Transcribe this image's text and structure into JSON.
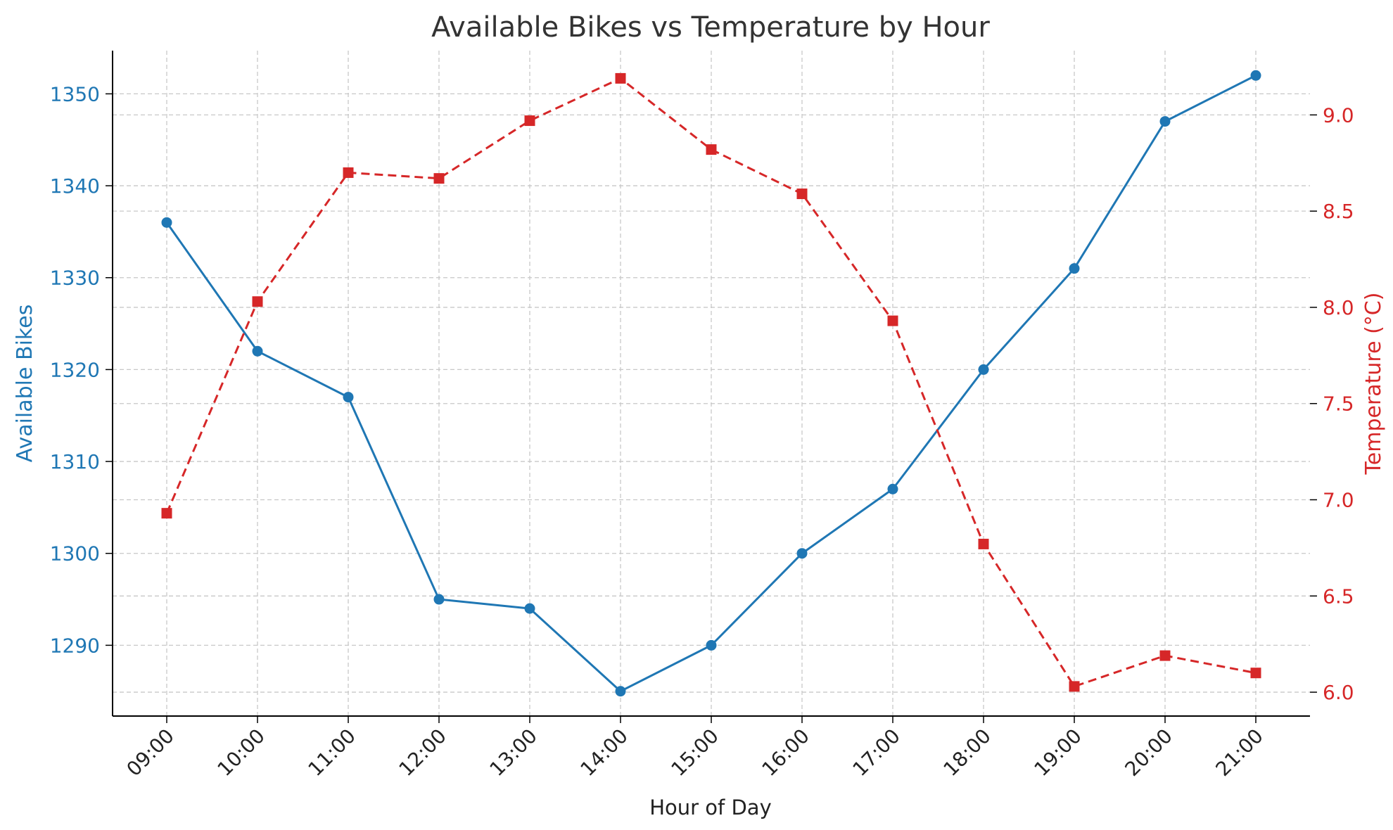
{
  "chart_data": {
    "type": "line",
    "title": "Available Bikes vs Temperature by Hour",
    "xlabel": "Hour of Day",
    "categories": [
      "09:00",
      "10:00",
      "11:00",
      "12:00",
      "13:00",
      "14:00",
      "15:00",
      "16:00",
      "17:00",
      "18:00",
      "19:00",
      "20:00",
      "21:00"
    ],
    "left_axis": {
      "label": "Available Bikes",
      "color": "#1f77b4",
      "ticks": [
        1290,
        1300,
        1310,
        1320,
        1330,
        1340,
        1350
      ],
      "range": [
        1282.3,
        1354.7
      ]
    },
    "right_axis": {
      "label": "Temperature (°C)",
      "color": "#d62728",
      "ticks": [
        6.0,
        6.5,
        7.0,
        7.5,
        8.0,
        8.5,
        9.0
      ],
      "tick_labels": [
        "6.0",
        "6.5",
        "7.0",
        "7.5",
        "8.0",
        "8.5",
        "9.0"
      ],
      "range": [
        5.876,
        9.334
      ]
    },
    "series": [
      {
        "name": "Available Bikes",
        "axis": "left",
        "color": "#1f77b4",
        "line_style": "solid",
        "marker": "circle",
        "values": [
          1336,
          1322,
          1317,
          1295,
          1294,
          1285,
          1290,
          1300,
          1307,
          1320,
          1331,
          1347,
          1352
        ]
      },
      {
        "name": "Temperature (°C)",
        "axis": "right",
        "color": "#d62728",
        "line_style": "dashed",
        "marker": "square",
        "values": [
          6.93,
          8.03,
          8.7,
          8.67,
          8.97,
          9.19,
          8.82,
          8.59,
          7.93,
          6.77,
          6.03,
          6.19,
          6.1
        ]
      }
    ],
    "grid": true
  }
}
